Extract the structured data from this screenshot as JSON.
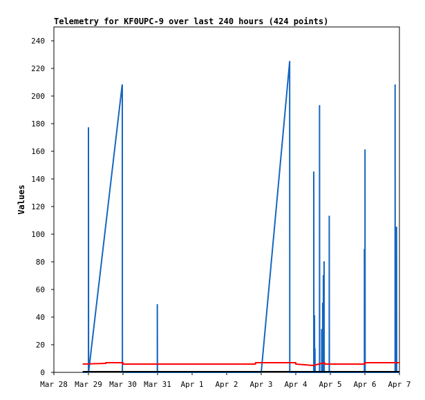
{
  "chart_data": {
    "type": "line",
    "title": "Telemetry for KF0UPC-9 over last 240 hours (424 points)",
    "xlabel": "",
    "ylabel": "Values",
    "xlim": [
      "Mar 28",
      "Apr 7"
    ],
    "ylim": [
      0,
      250
    ],
    "x_ticks": [
      "Mar 28",
      "Mar 29",
      "Mar 30",
      "Mar 31",
      "Apr 1",
      "Apr 2",
      "Apr 3",
      "Apr 4",
      "Apr 5",
      "Apr 6",
      "Apr 7"
    ],
    "y_ticks": [
      0,
      20,
      40,
      60,
      80,
      100,
      120,
      140,
      160,
      180,
      200,
      220,
      240
    ],
    "grid": false,
    "colors": {
      "series_blue": "#1565c0",
      "series_red": "#ff0000",
      "series_black": "#000000"
    },
    "series": [
      {
        "color": "#1565c0",
        "points": [
          [
            "Mar 28 20:00",
            0
          ],
          [
            "Mar 29 00:00",
            0
          ],
          [
            "Mar 29 00:00",
            177
          ],
          [
            "Mar 29 00:05",
            0
          ],
          [
            "Mar 29 23:25",
            208
          ],
          [
            "Mar 29 23:30",
            208
          ],
          [
            "Mar 29 23:35",
            0
          ],
          [
            "Mar 30 23:50",
            0
          ],
          [
            "Mar 30 23:50",
            49
          ],
          [
            "Mar 30 23:55",
            0
          ],
          [
            "Apr 3 00:00",
            0
          ],
          [
            "Apr 3 19:45",
            225
          ],
          [
            "Apr 3 19:50",
            0
          ],
          [
            "Apr 4 12:30",
            0
          ],
          [
            "Apr 4 12:30",
            145
          ],
          [
            "Apr 4 12:35",
            0
          ],
          [
            "Apr 4 13:00",
            0
          ],
          [
            "Apr 4 13:00",
            41
          ],
          [
            "Apr 4 13:05",
            0
          ],
          [
            "Apr 4 13:20",
            0
          ],
          [
            "Apr 4 13:20",
            17
          ],
          [
            "Apr 4 13:25",
            0
          ],
          [
            "Apr 4 16:30",
            0
          ],
          [
            "Apr 4 16:30",
            193
          ],
          [
            "Apr 4 16:35",
            0
          ],
          [
            "Apr 4 18:00",
            0
          ],
          [
            "Apr 4 18:00",
            31
          ],
          [
            "Apr 4 18:05",
            0
          ],
          [
            "Apr 4 18:40",
            0
          ],
          [
            "Apr 4 18:40",
            50
          ],
          [
            "Apr 4 18:45",
            0
          ],
          [
            "Apr 4 19:10",
            0
          ],
          [
            "Apr 4 19:10",
            70
          ],
          [
            "Apr 4 19:15",
            0
          ],
          [
            "Apr 4 19:40",
            0
          ],
          [
            "Apr 4 19:40",
            80
          ],
          [
            "Apr 4 19:45",
            0
          ],
          [
            "Apr 4 23:15",
            0
          ],
          [
            "Apr 4 23:15",
            113
          ],
          [
            "Apr 4 23:20",
            0
          ],
          [
            "Apr 5 23:40",
            0
          ],
          [
            "Apr 5 23:40",
            89
          ],
          [
            "Apr 5 23:45",
            0
          ],
          [
            "Apr 6 00:05",
            0
          ],
          [
            "Apr 6 00:05",
            161
          ],
          [
            "Apr 6 00:10",
            0
          ],
          [
            "Apr 6 21:00",
            0
          ],
          [
            "Apr 6 21:00",
            208
          ],
          [
            "Apr 6 21:05",
            0
          ],
          [
            "Apr 6 22:00",
            0
          ],
          [
            "Apr 6 22:00",
            105
          ],
          [
            "Apr 6 22:05",
            0
          ],
          [
            "Apr 7 00:00",
            0
          ]
        ]
      },
      {
        "color": "#ff0000",
        "points": [
          [
            "Mar 28 20:00",
            6
          ],
          [
            "Mar 29 12:00",
            6.5
          ],
          [
            "Mar 29 12:00",
            7
          ],
          [
            "Mar 30 00:00",
            7
          ],
          [
            "Mar 30 00:00",
            6
          ],
          [
            "Apr 2 20:00",
            6
          ],
          [
            "Apr 2 20:00",
            7
          ],
          [
            "Apr 3 19:50",
            7
          ],
          [
            "Apr 4 00:00",
            7
          ],
          [
            "Apr 4 00:00",
            6
          ],
          [
            "Apr 4 12:00",
            5
          ],
          [
            "Apr 4 16:00",
            6
          ],
          [
            "Apr 4 20:00",
            7
          ],
          [
            "Apr 4 20:00",
            6
          ],
          [
            "Apr 6 00:00",
            6
          ],
          [
            "Apr 6 00:00",
            7
          ],
          [
            "Apr 6 20:00",
            7
          ],
          [
            "Apr 7 00:00",
            7
          ]
        ]
      },
      {
        "color": "#000000",
        "points": [
          [
            "Mar 28 20:00",
            0.5
          ],
          [
            "Apr 7 00:00",
            0.5
          ]
        ]
      }
    ]
  }
}
